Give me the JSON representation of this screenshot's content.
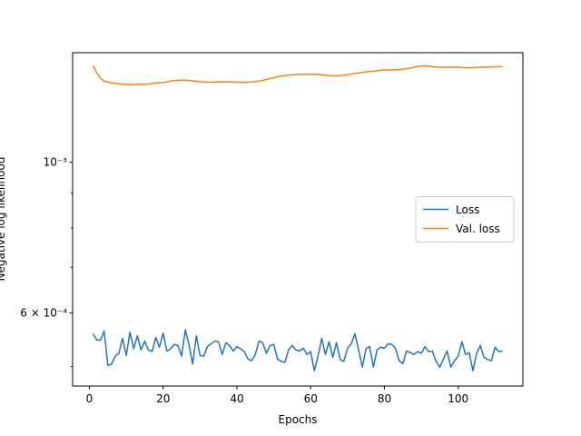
{
  "chart_data": {
    "type": "line",
    "xlabel": "Epochs",
    "ylabel": "Negative log likelihood",
    "yscale": "log",
    "xlim": [
      -4.55,
      117.55
    ],
    "xticks": [
      0,
      20,
      40,
      60,
      80,
      100
    ],
    "ylim": [
      0.000468,
      0.00145
    ],
    "yticks": [
      {
        "value": 0.0006,
        "label": "6 × 10⁻⁴"
      },
      {
        "value": 0.001,
        "label": "10⁻³"
      }
    ],
    "yminorticks": [
      0.0005,
      0.0007,
      0.0008,
      0.0009
    ],
    "legend": "center right",
    "x": [
      1,
      2,
      3,
      4,
      5,
      6,
      7,
      8,
      9,
      10,
      11,
      12,
      13,
      14,
      15,
      16,
      17,
      18,
      19,
      20,
      21,
      22,
      23,
      24,
      25,
      26,
      27,
      28,
      29,
      30,
      31,
      32,
      33,
      34,
      35,
      36,
      37,
      38,
      39,
      40,
      41,
      42,
      43,
      44,
      45,
      46,
      47,
      48,
      49,
      50,
      51,
      52,
      53,
      54,
      55,
      56,
      57,
      58,
      59,
      60,
      61,
      62,
      63,
      64,
      65,
      66,
      67,
      68,
      69,
      70,
      71,
      72,
      73,
      74,
      75,
      76,
      77,
      78,
      79,
      80,
      81,
      82,
      83,
      84,
      85,
      86,
      87,
      88,
      89,
      90,
      91,
      92,
      93,
      94,
      95,
      96,
      97,
      98,
      99,
      100,
      101,
      102,
      103,
      104,
      105,
      106,
      107,
      108,
      109,
      110,
      111,
      112
    ],
    "series": [
      {
        "name": "Loss",
        "color": "#1f77b4",
        "values": [
          0.000559,
          0.000547,
          0.000547,
          0.000564,
          0.000502,
          0.000504,
          0.000518,
          0.000523,
          0.00055,
          0.000519,
          0.000562,
          0.000531,
          0.000555,
          0.000529,
          0.000545,
          0.000529,
          0.000526,
          0.000552,
          0.000534,
          0.00056,
          0.000527,
          0.000531,
          0.000539,
          0.000537,
          0.000518,
          0.000566,
          0.000539,
          0.000504,
          0.000555,
          0.000519,
          0.000518,
          0.000535,
          0.00054,
          0.000545,
          0.000544,
          0.000521,
          0.000542,
          0.000537,
          0.000527,
          0.000535,
          0.000531,
          0.000526,
          0.000513,
          0.00051,
          0.000521,
          0.000545,
          0.000542,
          0.000523,
          0.000537,
          0.000539,
          0.000513,
          0.000509,
          0.000507,
          0.000529,
          0.000537,
          0.000529,
          0.000527,
          0.000532,
          0.000521,
          0.000526,
          0.000493,
          0.000518,
          0.00055,
          0.000521,
          0.000544,
          0.000516,
          0.000542,
          0.000512,
          0.000509,
          0.000532,
          0.00054,
          0.000559,
          0.000529,
          0.000499,
          0.000531,
          0.000535,
          0.000499,
          0.000529,
          0.000534,
          0.000532,
          0.00054,
          0.000539,
          0.000532,
          0.00051,
          0.000505,
          0.000527,
          0.000524,
          0.000521,
          0.000526,
          0.000523,
          0.000535,
          0.000526,
          0.000527,
          0.000509,
          0.000499,
          0.000513,
          0.000527,
          0.000499,
          0.00051,
          0.000518,
          0.000544,
          0.000521,
          0.000524,
          0.000493,
          0.000523,
          0.000537,
          0.000516,
          0.000512,
          0.00051,
          0.000534,
          0.000526,
          0.000527
        ]
      },
      {
        "name": "Val. loss",
        "color": "#ff7f0e",
        "values": [
          0.001388,
          0.001354,
          0.001329,
          0.001317,
          0.001313,
          0.001309,
          0.001307,
          0.001305,
          0.001303,
          0.001301,
          0.001301,
          0.001302,
          0.001302,
          0.001302,
          0.001303,
          0.001304,
          0.001306,
          0.001309,
          0.00131,
          0.001311,
          0.001313,
          0.001317,
          0.001319,
          0.00132,
          0.001321,
          0.001321,
          0.00132,
          0.001318,
          0.001316,
          0.001314,
          0.001313,
          0.001312,
          0.001312,
          0.001313,
          0.001313,
          0.001313,
          0.001313,
          0.001313,
          0.001313,
          0.001312,
          0.001312,
          0.001311,
          0.001312,
          0.001313,
          0.001315,
          0.001317,
          0.00132,
          0.001324,
          0.001328,
          0.001332,
          0.001336,
          0.001339,
          0.001342,
          0.001344,
          0.001345,
          0.001346,
          0.001347,
          0.001347,
          0.001347,
          0.001347,
          0.001347,
          0.001346,
          0.001345,
          0.001343,
          0.001341,
          0.00134,
          0.00134,
          0.001341,
          0.001343,
          0.001346,
          0.001349,
          0.001352,
          0.001354,
          0.001356,
          0.001358,
          0.00136,
          0.001362,
          0.001364,
          0.001366,
          0.001368,
          0.001368,
          0.001367,
          0.001368,
          0.001369,
          0.001371,
          0.001373,
          0.001376,
          0.00138,
          0.001384,
          0.001386,
          0.001387,
          0.001385,
          0.001383,
          0.001381,
          0.00138,
          0.00138,
          0.00138,
          0.00138,
          0.00138,
          0.001381,
          0.001379,
          0.001378,
          0.001377,
          0.001378,
          0.001379,
          0.00138,
          0.00138,
          0.001381,
          0.001382,
          0.001382,
          0.001383,
          0.001383
        ]
      }
    ]
  }
}
